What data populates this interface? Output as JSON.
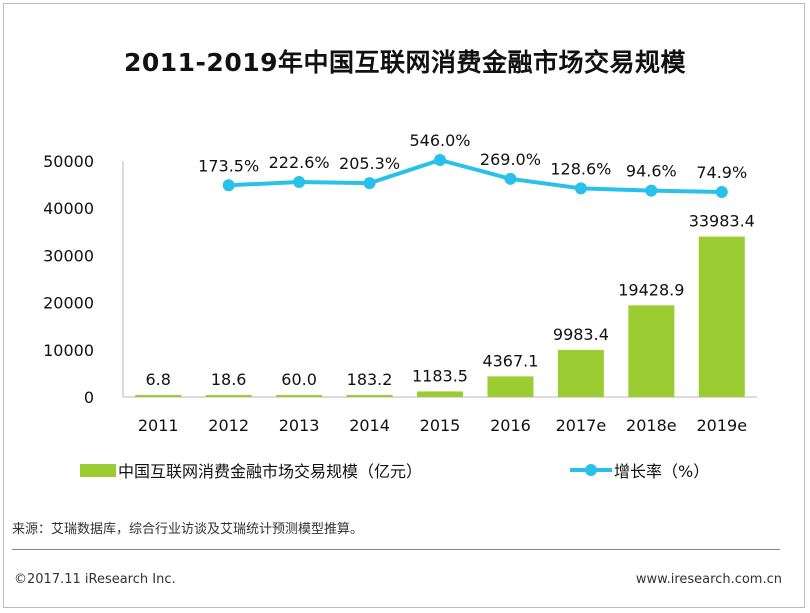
{
  "title": "2011-2019年中国互联网消费金融市场交易规模",
  "colors": {
    "bar": "#9bcc32",
    "line": "#29c0ea",
    "axis": "#cfcfcf"
  },
  "chart_data": {
    "type": "bar+line",
    "categories": [
      "2011",
      "2012",
      "2013",
      "2014",
      "2015",
      "2016",
      "2017e",
      "2018e",
      "2019e"
    ],
    "ylim": [
      0,
      50000
    ],
    "yticks": [
      0,
      10000,
      20000,
      30000,
      40000,
      50000
    ],
    "bar_labels": [
      "6.8",
      "18.6",
      "60.0",
      "183.2",
      "1183.5",
      "4367.1",
      "9983.4",
      "19428.9",
      "33983.4"
    ],
    "line_labels": [
      "173.5%",
      "222.6%",
      "205.3%",
      "546.0%",
      "269.0%",
      "128.6%",
      "94.6%",
      "74.9%"
    ],
    "series": [
      {
        "name": "中国互联网消费金融市场交易规模（亿元）",
        "kind": "bar",
        "values": [
          6.8,
          18.6,
          60.0,
          183.2,
          1183.5,
          4367.1,
          9983.4,
          19428.9,
          33983.4
        ]
      },
      {
        "name": "增长率（%）",
        "kind": "line",
        "values": [
          null,
          173.5,
          222.6,
          205.3,
          546.0,
          269.0,
          128.6,
          94.6,
          74.9
        ]
      }
    ],
    "grid": false,
    "legend_position": "bottom"
  },
  "legend": {
    "bar_label": "中国互联网消费金融市场交易规模（亿元）",
    "line_label": "增长率（%）"
  },
  "footer": {
    "source": "来源：艾瑞数据库，综合行业访谈及艾瑞统计预测模型推算。",
    "copyright": "©2017.11 iResearch Inc.",
    "website": "www.iresearch.com.cn"
  }
}
